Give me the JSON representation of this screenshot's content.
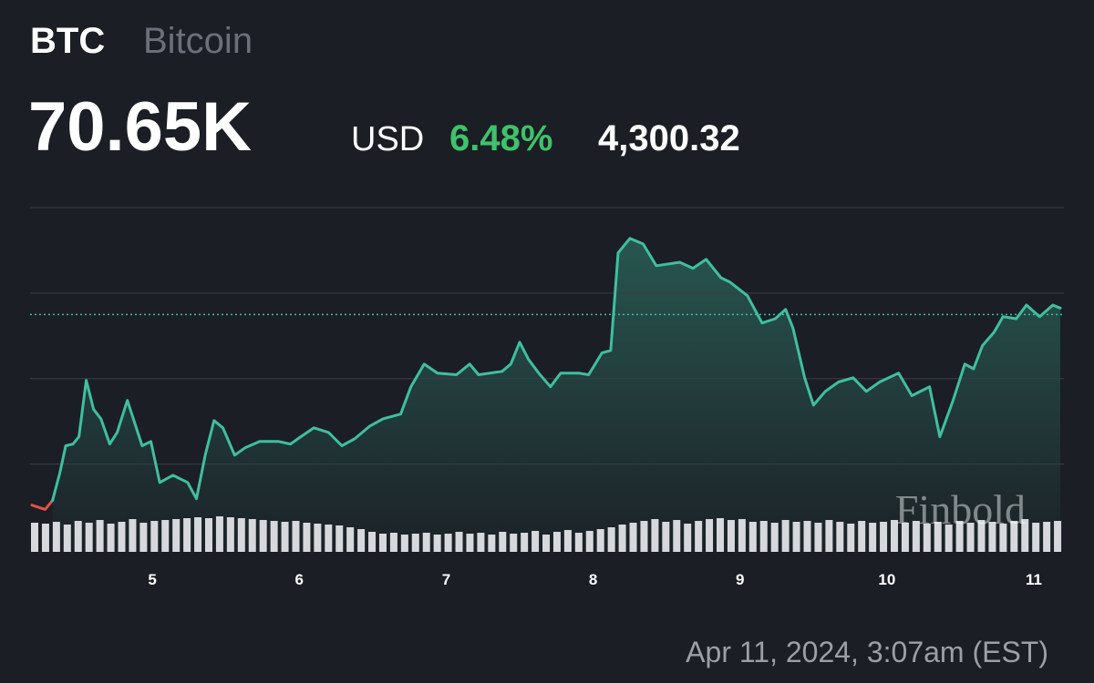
{
  "header": {
    "symbol": "BTC",
    "name": "Bitcoin",
    "price": "70.65K",
    "currency": "USD",
    "change_percent": "6.48%",
    "change": "4,300.32",
    "timestamp": "Apr 11, 2024, 3:07am (EST)",
    "watermark": "Finbold"
  },
  "chart_data": {
    "type": "line",
    "xlim": [
      4.18,
      11.18
    ],
    "xticks": [
      5,
      6,
      7,
      8,
      9,
      10,
      11
    ],
    "ylim": [
      65800,
      74000
    ],
    "yticks": [
      67000,
      69000,
      71000,
      73000
    ],
    "grid": true,
    "reference_value": 70500,
    "reference_color": "#3fbfa0",
    "series": [
      {
        "color": "#e0534a",
        "x": [
          4.18,
          4.27,
          4.32
        ],
        "values": [
          66040,
          65940,
          66150
        ]
      },
      {
        "color": "#3fbfa0",
        "x": [
          4.32,
          4.37,
          4.41,
          4.46,
          4.5,
          4.55,
          4.6,
          4.65,
          4.71,
          4.76,
          4.83,
          4.88,
          4.93,
          4.99,
          5.05,
          5.14,
          5.24,
          5.3,
          5.36,
          5.42,
          5.48,
          5.56,
          5.63,
          5.73,
          5.86,
          5.94,
          6.01,
          6.1,
          6.2,
          6.29,
          6.38,
          6.48,
          6.57,
          6.69,
          6.76,
          6.85,
          6.94,
          7.07,
          7.16,
          7.22,
          7.38,
          7.44,
          7.5,
          7.56,
          7.63,
          7.71,
          7.78,
          7.9,
          7.97,
          8.06,
          8.12,
          8.17,
          8.25,
          8.34,
          8.43,
          8.59,
          8.68,
          8.77,
          8.87,
          8.93,
          9.05,
          9.15,
          9.24,
          9.31,
          9.36,
          9.44,
          9.5,
          9.58,
          9.67,
          9.77,
          9.86,
          9.95,
          10.08,
          10.17,
          10.29,
          10.36,
          10.45,
          10.53,
          10.59,
          10.65,
          10.73,
          10.79,
          10.88,
          10.95,
          11.04,
          11.13,
          11.18
        ],
        "values": [
          66150,
          66790,
          67430,
          67470,
          67640,
          68960,
          68280,
          68060,
          67470,
          67740,
          68490,
          67960,
          67430,
          67530,
          66570,
          66740,
          66570,
          66190,
          67210,
          68020,
          67850,
          67210,
          67380,
          67530,
          67530,
          67470,
          67640,
          67850,
          67740,
          67430,
          67600,
          67890,
          68060,
          68170,
          68810,
          69340,
          69130,
          69090,
          69340,
          69090,
          69170,
          69340,
          69850,
          69450,
          69130,
          68810,
          69130,
          69130,
          69090,
          69600,
          69660,
          71940,
          72280,
          72150,
          71640,
          71720,
          71580,
          71790,
          71360,
          71260,
          70940,
          70300,
          70400,
          70620,
          70190,
          69020,
          68380,
          68700,
          68920,
          69020,
          68700,
          68920,
          69130,
          68600,
          68810,
          67640,
          68490,
          69340,
          69230,
          69770,
          70090,
          70450,
          70400,
          70720,
          70450,
          70720,
          70650
        ]
      }
    ],
    "volume_color": "#d6d8dc",
    "volume_ylim": [
      0,
      40
    ],
    "volume": [
      32,
      31,
      33,
      30,
      34,
      32,
      35,
      31,
      33,
      36,
      32,
      34,
      35,
      36,
      37,
      38,
      37,
      39,
      38,
      37,
      36,
      35,
      34,
      33,
      34,
      32,
      31,
      30,
      29,
      27,
      25,
      22,
      20,
      21,
      19,
      20,
      21,
      19,
      20,
      22,
      20,
      21,
      19,
      22,
      20,
      21,
      23,
      19,
      22,
      24,
      21,
      23,
      25,
      27,
      30,
      32,
      34,
      36,
      33,
      35,
      31,
      34,
      36,
      37,
      35,
      36,
      33,
      34,
      32,
      35,
      33,
      34,
      32,
      35,
      33,
      31,
      34,
      32,
      33,
      35,
      32,
      34,
      31,
      33,
      30,
      34,
      32,
      35,
      33,
      31,
      34,
      36,
      32,
      33,
      34
    ]
  }
}
